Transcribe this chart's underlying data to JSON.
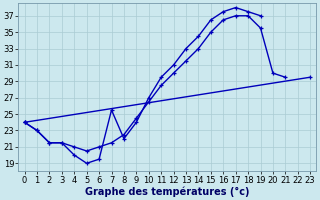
{
  "xlabel": "Graphe des températures (°c)",
  "bg_color": "#cce8ee",
  "grid_color": "#aaccd4",
  "line_color": "#0000bb",
  "xlim": [
    -0.5,
    23.5
  ],
  "ylim": [
    18.0,
    38.5
  ],
  "yticks": [
    19,
    21,
    23,
    25,
    27,
    29,
    31,
    33,
    35,
    37
  ],
  "xticks": [
    0,
    1,
    2,
    3,
    4,
    5,
    6,
    7,
    8,
    9,
    10,
    11,
    12,
    13,
    14,
    15,
    16,
    17,
    18,
    19,
    20,
    21,
    22,
    23
  ],
  "line1_x": [
    0,
    1,
    2,
    3,
    4,
    5,
    6,
    7,
    8,
    9,
    10,
    11,
    12,
    13,
    14,
    15,
    16,
    17,
    18,
    19
  ],
  "line1_y": [
    24.0,
    23.0,
    21.5,
    21.5,
    20.0,
    19.0,
    19.5,
    25.5,
    22.0,
    24.0,
    27.0,
    29.5,
    31.0,
    33.0,
    34.5,
    36.5,
    37.5,
    38.0,
    37.5,
    37.0
  ],
  "line2_x": [
    0,
    1,
    2,
    3,
    4,
    5,
    6,
    7,
    8,
    9,
    10,
    11,
    12,
    13,
    14,
    15,
    16,
    17,
    18,
    19,
    20,
    21
  ],
  "line2_y": [
    24.0,
    23.0,
    21.5,
    21.5,
    21.0,
    20.5,
    21.0,
    21.5,
    22.5,
    24.5,
    26.5,
    28.5,
    30.0,
    31.5,
    33.0,
    35.0,
    36.5,
    37.0,
    37.0,
    35.5,
    30.0,
    29.5
  ],
  "line3_x": [
    0,
    23
  ],
  "line3_y": [
    24.0,
    29.5
  ],
  "linewidth": 1.0,
  "xlabel_fontsize": 7,
  "tick_fontsize": 6
}
